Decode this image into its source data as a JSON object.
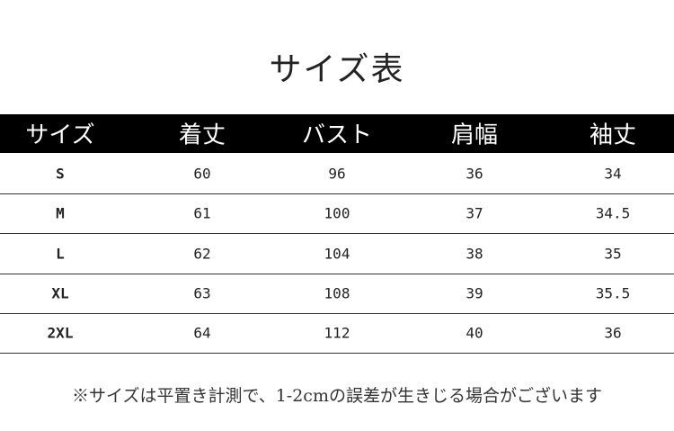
{
  "title": "サイズ表",
  "table": {
    "header": [
      "サイズ",
      "着丈",
      "バスト",
      "肩幅",
      "袖丈"
    ],
    "rows": [
      [
        "S",
        60,
        96,
        36,
        34
      ],
      [
        "M",
        61,
        100,
        37,
        34.5
      ],
      [
        "L",
        62,
        104,
        38,
        35
      ],
      [
        "XL",
        63,
        108,
        39,
        35.5
      ],
      [
        "2XL",
        64,
        112,
        40,
        36
      ]
    ]
  },
  "note": "※サイズは平置き計測で、1-2cmの誤差が生きじる場合がございます"
}
